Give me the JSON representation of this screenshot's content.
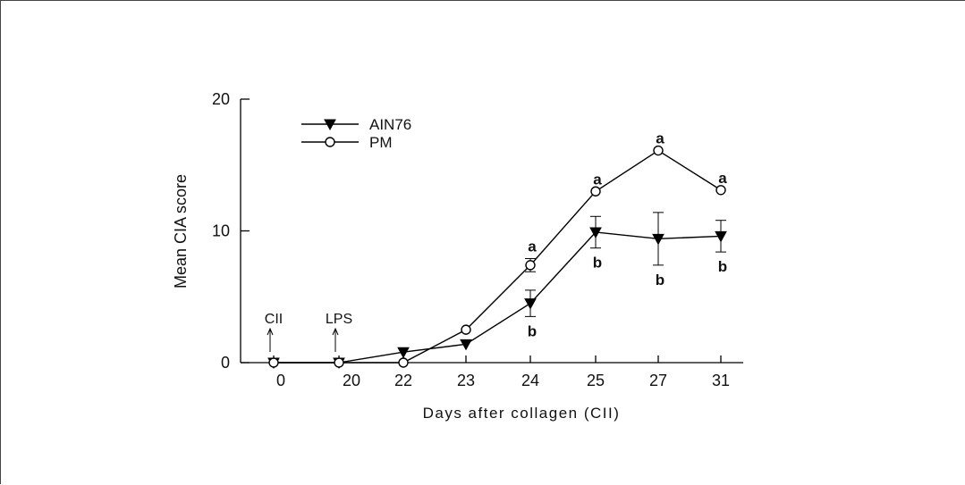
{
  "chart_data": {
    "type": "line",
    "categories": [
      "0",
      "20",
      "22",
      "23",
      "24",
      "25",
      "27",
      "31"
    ],
    "xlabel": "Days after collagen (CII)",
    "ylabel": "Mean CIA score",
    "ylim": [
      0,
      20
    ],
    "yticks": [
      "0",
      "10",
      "20"
    ],
    "grid": false,
    "legend_position": "top-left",
    "series": [
      {
        "name": "AIN76",
        "marker": "filled-triangle-down",
        "color": "#000000",
        "values": [
          0,
          0,
          0.8,
          1.4,
          4.5,
          9.9,
          9.4,
          9.6
        ],
        "error": [
          0,
          0,
          0,
          0,
          1.0,
          1.2,
          2.0,
          1.2
        ],
        "letters": [
          "",
          "",
          "",
          "",
          "b",
          "b",
          "b",
          "b"
        ]
      },
      {
        "name": "PM",
        "marker": "open-circle",
        "color": "#000000",
        "values": [
          0,
          0,
          0,
          2.5,
          7.4,
          13.0,
          16.1,
          13.1
        ],
        "error": [
          0,
          0,
          0,
          0,
          0.5,
          0,
          0,
          0
        ],
        "letters": [
          "",
          "",
          "",
          "",
          "a",
          "a",
          "a",
          "a"
        ]
      }
    ],
    "annotations": [
      {
        "text": "CII",
        "category_index": 0
      },
      {
        "text": "LPS",
        "category_index": 1
      }
    ]
  }
}
